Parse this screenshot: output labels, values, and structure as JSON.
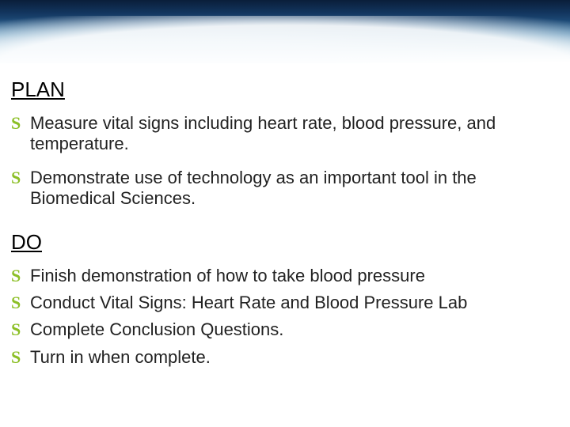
{
  "colors": {
    "bullet_color": "#8cbf26",
    "text_color": "#222222",
    "heading_color": "#000000",
    "background": "#ffffff",
    "banner_gradient": [
      "#0a1e3a",
      "#12355e",
      "#1e4d7a",
      "#3a7aa8",
      "#88b4d0",
      "#d8e8f2",
      "#ffffff"
    ]
  },
  "typography": {
    "heading_fontsize": 26,
    "body_fontsize": 22,
    "font_family": "Arial"
  },
  "bullet_glyph": "S",
  "sections": {
    "plan": {
      "heading": "PLAN",
      "items": [
        "Measure vital signs including heart rate, blood pressure, and temperature.",
        "Demonstrate use of technology as an important tool in the Biomedical Sciences."
      ]
    },
    "do": {
      "heading": "DO",
      "items": [
        "Finish demonstration of how to take blood pressure",
        "Conduct Vital Signs:  Heart Rate and Blood Pressure Lab",
        "Complete Conclusion Questions.",
        "Turn in when complete."
      ]
    }
  }
}
